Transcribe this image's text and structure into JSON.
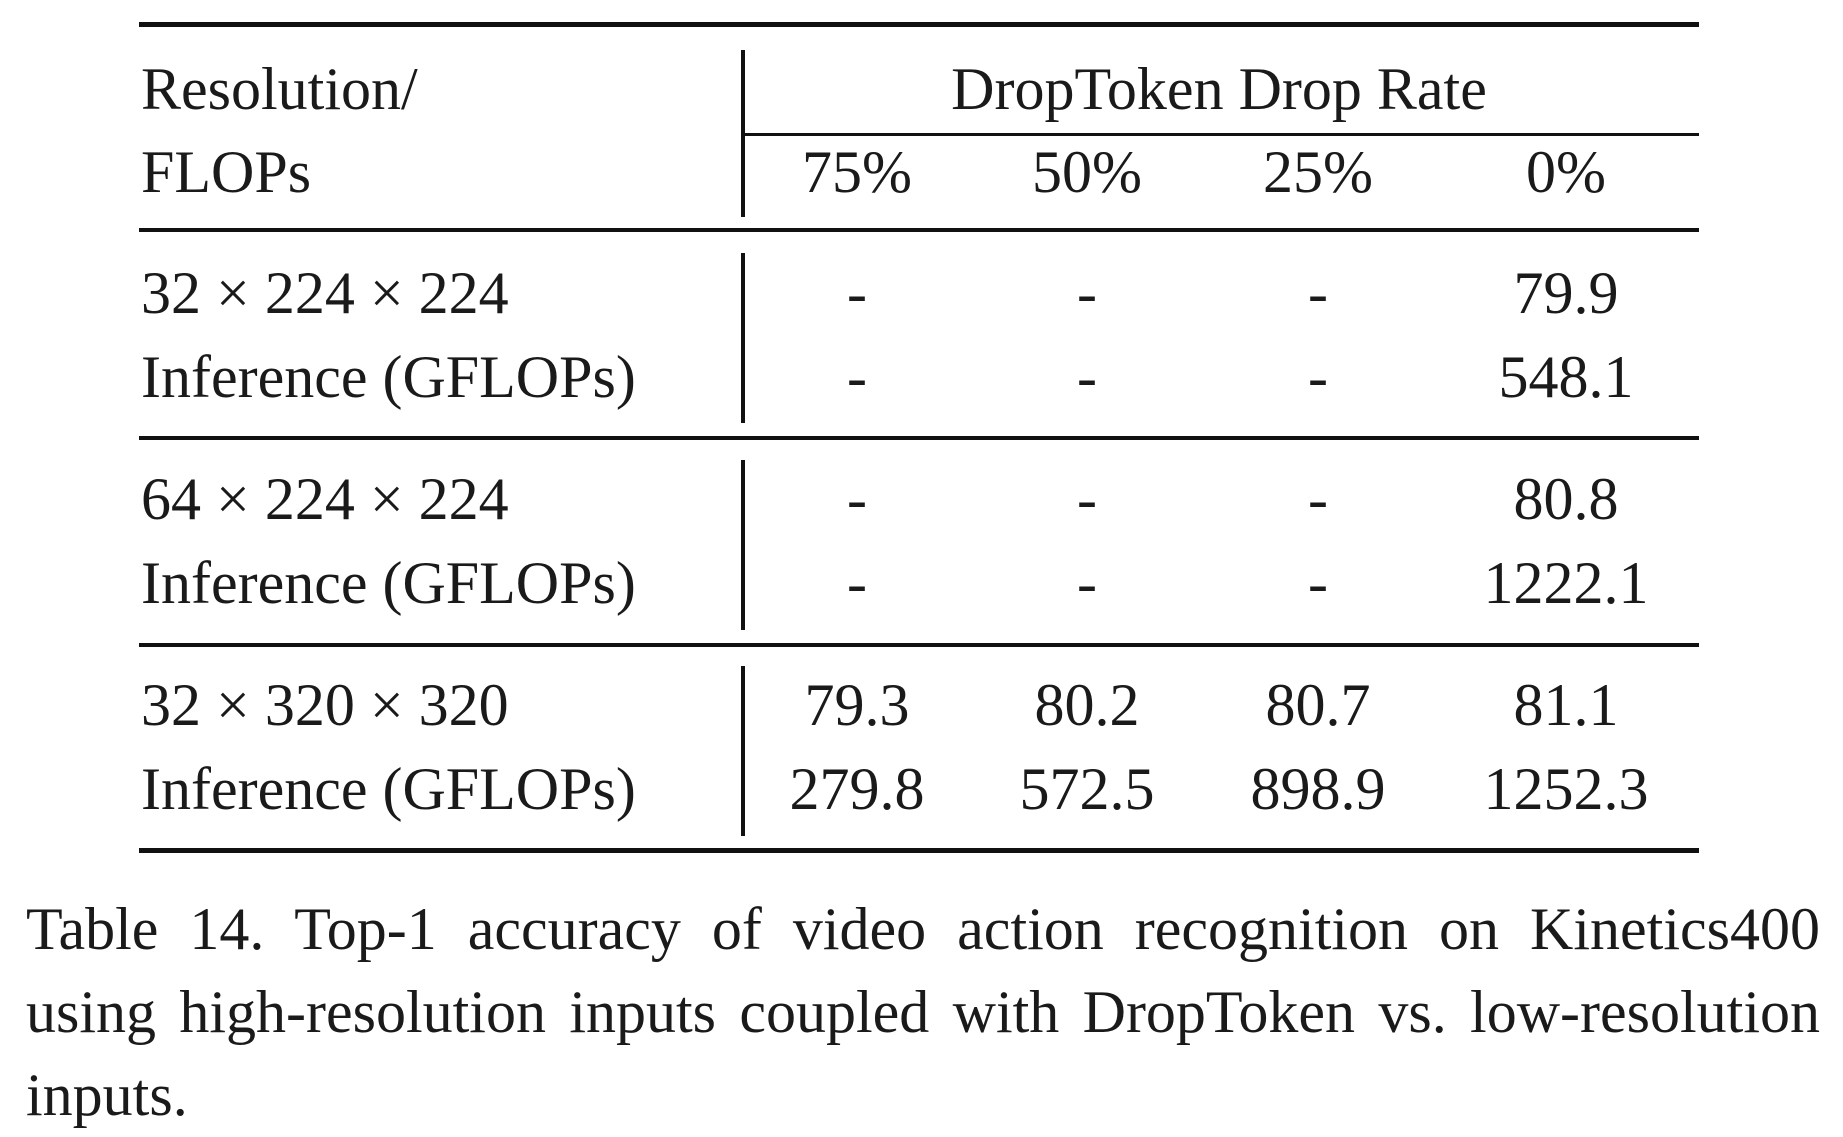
{
  "table": {
    "header": {
      "first_col_line1": "Resolution/",
      "first_col_line2": "FLOPs",
      "group_label": "DropToken Drop Rate",
      "drop_rates": [
        "75%",
        "50%",
        "25%",
        "0%"
      ]
    },
    "groups": [
      {
        "resolution": "32 × 224 × 224",
        "metric_label": "Inference (GFLOPs)",
        "accuracy": [
          "-",
          "-",
          "-",
          "79.9"
        ],
        "gflops": [
          "-",
          "-",
          "-",
          "548.1"
        ]
      },
      {
        "resolution": "64 × 224 × 224",
        "metric_label": "Inference (GFLOPs)",
        "accuracy": [
          "-",
          "-",
          "-",
          "80.8"
        ],
        "gflops": [
          "-",
          "-",
          "-",
          "1222.1"
        ]
      },
      {
        "resolution": "32 × 320 × 320",
        "metric_label": "Inference (GFLOPs)",
        "accuracy": [
          "79.3",
          "80.2",
          "80.7",
          "81.1"
        ],
        "gflops": [
          "279.8",
          "572.5",
          "898.9",
          "1252.3"
        ]
      }
    ]
  },
  "caption": "Table 14. Top-1 accuracy of video action recognition on Kinetics400 using high-resolution inputs coupled with DropToken vs. low-resolution inputs."
}
